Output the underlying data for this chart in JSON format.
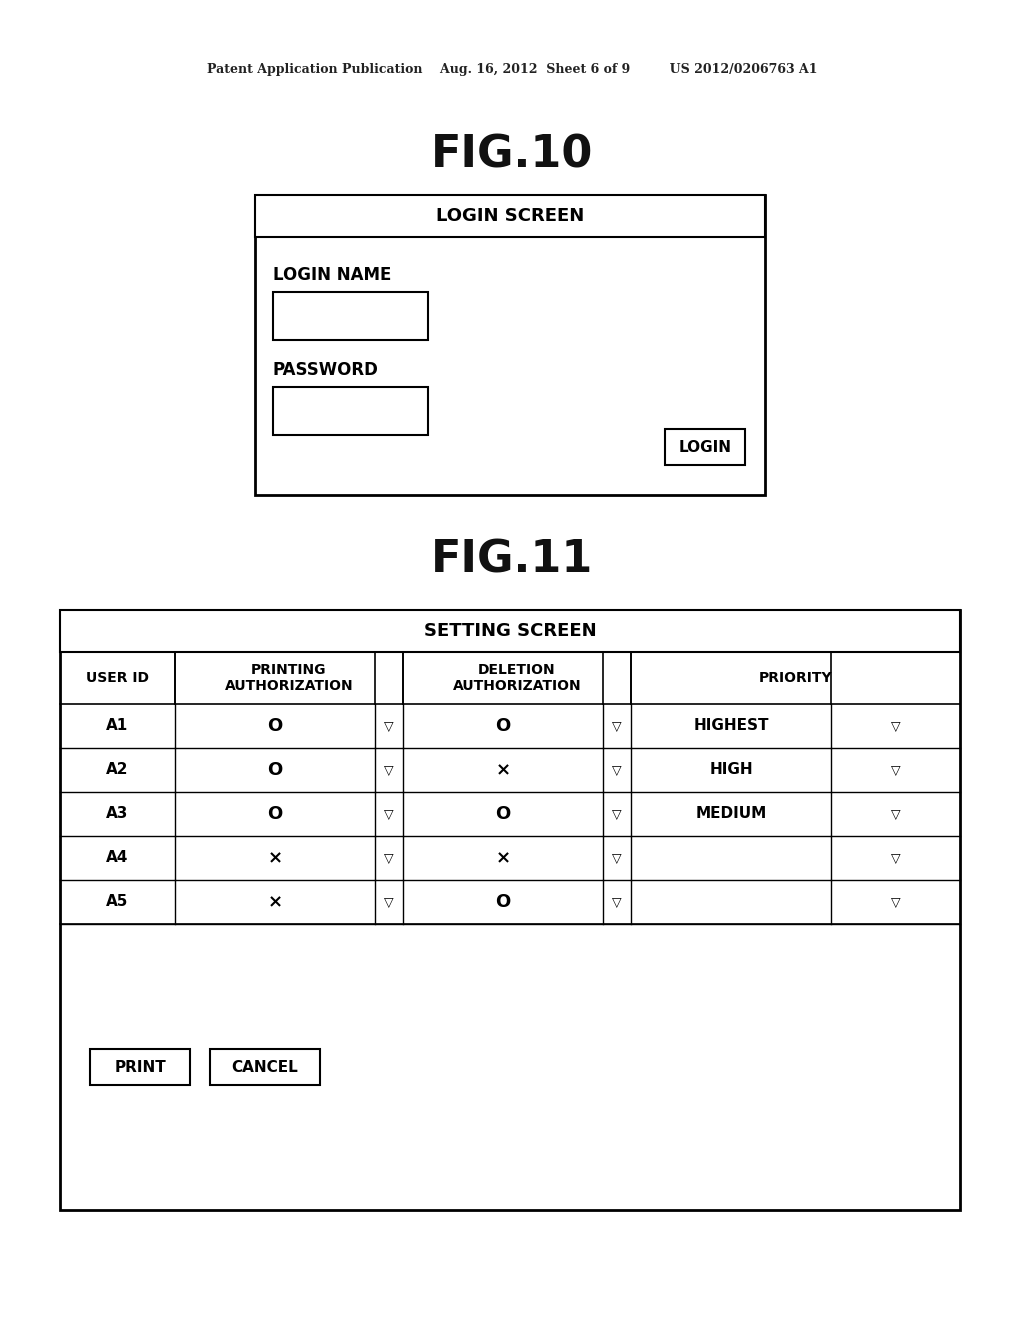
{
  "bg_color": "#ffffff",
  "header_text": "Patent Application Publication    Aug. 16, 2012  Sheet 6 of 9         US 2012/0206763 A1",
  "fig10_title": "FIG.10",
  "fig11_title": "FIG.11",
  "login_screen": {
    "title": "LOGIN SCREEN",
    "label1": "LOGIN NAME",
    "label2": "PASSWORD",
    "button": "LOGIN"
  },
  "setting_screen": {
    "title": "SETTING SCREEN",
    "col_headers": [
      "USER ID",
      "PRINTING\nAUTHORIZATION",
      "DELETION\nAUTHORIZATION",
      "PRIORITY"
    ],
    "rows": [
      [
        "A1",
        "O",
        "O",
        "HIGHEST"
      ],
      [
        "A2",
        "O",
        "×",
        "HIGH"
      ],
      [
        "A3",
        "O",
        "O",
        "MEDIUM"
      ],
      [
        "A4",
        "×",
        "×",
        ""
      ],
      [
        "A5",
        "×",
        "O",
        ""
      ]
    ],
    "buttons": [
      "PRINT",
      "CANCEL"
    ],
    "triangle": "▽"
  }
}
